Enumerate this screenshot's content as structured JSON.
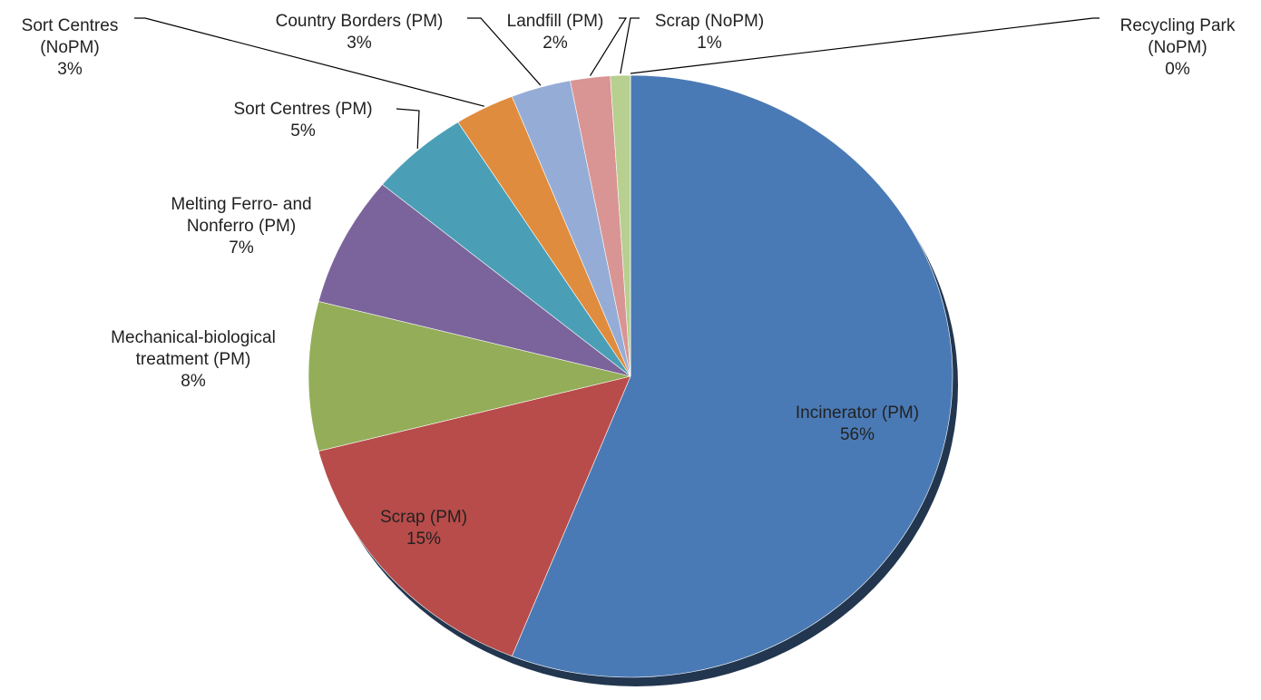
{
  "chart_data": {
    "type": "pie",
    "categories": [
      "Incinerator (PM)",
      "Scrap (PM)",
      "Mechanical-biological treatment (PM)",
      "Melting Ferro- and Nonferro (PM)",
      "Sort Centres (PM)",
      "Sort Centres (NoPM)",
      "Country Borders (PM)",
      "Landfill (PM)",
      "Scrap (NoPM)",
      "Recycling Park (NoPM)"
    ],
    "values": [
      56,
      15,
      8,
      7,
      5,
      3,
      3,
      2,
      1,
      0
    ],
    "value_labels": [
      "56%",
      "15%",
      "8%",
      "7%",
      "5%",
      "3%",
      "3%",
      "2%",
      "1%",
      "0%"
    ],
    "colors": [
      "#4a7ab5",
      "#b84c4a",
      "#93ad58",
      "#7b649b",
      "#4a9fb6",
      "#e08c3e",
      "#95add6",
      "#d99593",
      "#b7cf8f",
      "#a99ac4"
    ]
  }
}
